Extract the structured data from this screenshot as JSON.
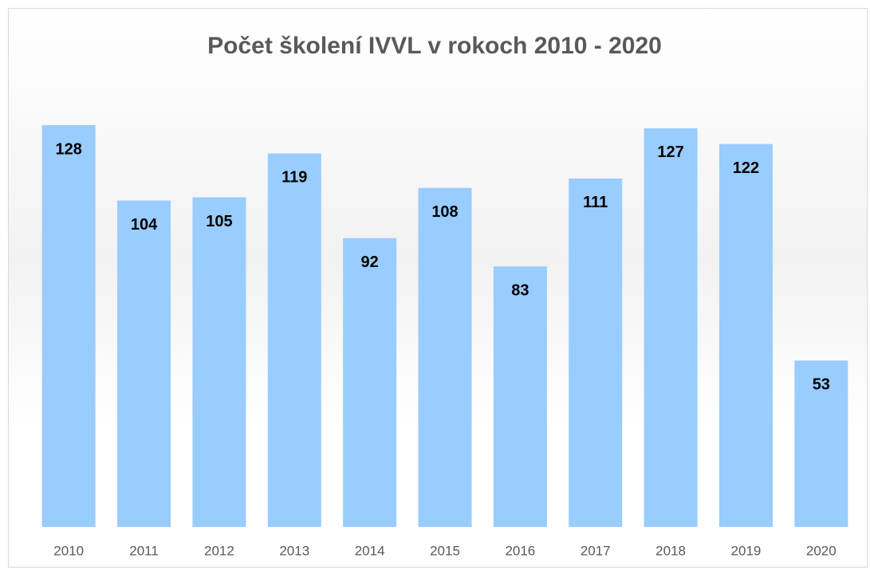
{
  "chart_data": {
    "type": "bar",
    "title": "Počet školení IVVL v rokoch 2010 - 2020",
    "categories": [
      "2010",
      "2011",
      "2012",
      "2013",
      "2014",
      "2015",
      "2016",
      "2017",
      "2018",
      "2019",
      "2020"
    ],
    "values": [
      128,
      104,
      105,
      119,
      92,
      108,
      83,
      111,
      127,
      122,
      53
    ],
    "color": "#99ccff",
    "grid": false
  }
}
